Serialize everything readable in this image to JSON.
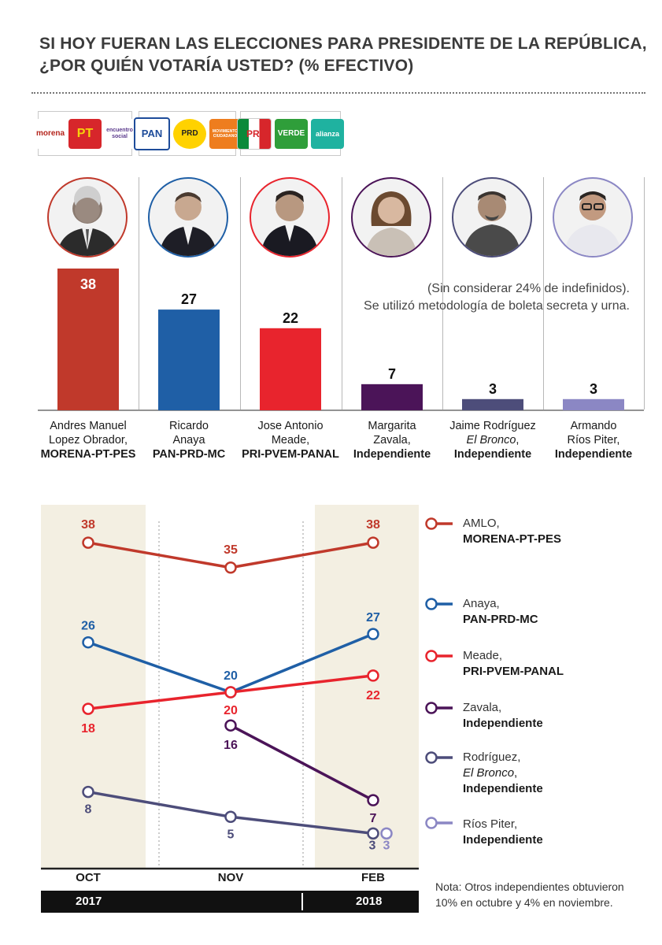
{
  "title": {
    "line1": "SI HOY FUERAN LAS ELECCIONES PARA PRESIDENTE DE LA REPÚBLICA,",
    "line2": "¿POR QUIÉN VOTARÍA USTED? (% EFECTIVO)"
  },
  "logos": {
    "g1": [
      "morena",
      "PT",
      "encuentro social"
    ],
    "g2": [
      "PAN",
      "PRD",
      "MOVIMIENTO CIUDADANO"
    ],
    "g3": [
      "PRI",
      "VERDE",
      "alianza"
    ]
  },
  "note_top": {
    "line1": "(Sin considerar 24% de indefinidos).",
    "line2": "Se utilizó metodología de boleta secreta y urna."
  },
  "colors": {
    "amlo": "#c0392b",
    "anaya": "#1f5fa6",
    "meade": "#e8242d",
    "zavala": "#4b1458",
    "bronco": "#4d4d7a",
    "rios": "#8b87c4",
    "shade": "#f3efe2"
  },
  "candidates": [
    {
      "l1": "Andres Manuel",
      "l2": "Lopez Obrador,",
      "party": "MORENA-PT-PES"
    },
    {
      "l1": "Ricardo",
      "l2": "Anaya",
      "party": "PAN-PRD-MC"
    },
    {
      "l1": "Jose Antonio",
      "l2": "Meade,",
      "party": "PRI-PVEM-PANAL"
    },
    {
      "l1": "Margarita",
      "l2": "Zavala,",
      "party": "Independiente"
    },
    {
      "l1": "Jaime Rodríguez",
      "l2": "El Bronco",
      "l2b": ",",
      "party": "Independiente"
    },
    {
      "l1": "Armando",
      "l2": "Ríos Piter,",
      "party": "Independiente"
    }
  ],
  "legend": [
    {
      "name": "AMLO,",
      "party": "MORENA-PT-PES"
    },
    {
      "name": "Anaya,",
      "party": "PAN-PRD-MC"
    },
    {
      "name": "Meade,",
      "party": "PRI-PVEM-PANAL"
    },
    {
      "name": "Zavala,",
      "party": "Independiente"
    },
    {
      "name": "Rodríguez,",
      "name2": "El Bronco",
      "name2b": ",",
      "party": "Independiente"
    },
    {
      "name": "Ríos Piter,",
      "party": "Independiente"
    }
  ],
  "axis": {
    "months": [
      "OCT",
      "NOV",
      "FEB"
    ],
    "year1": "2017",
    "year2": "2018"
  },
  "bottom_note": {
    "line1": "Nota: Otros independientes obtuvieron",
    "line2": "10% en octubre y 4% en noviembre."
  },
  "chart_data": [
    {
      "type": "bar",
      "title": "SI HOY FUERAN LAS ELECCIONES PARA PRESIDENTE DE LA REPÚBLICA, ¿POR QUIÉN VOTARÍA USTED? (% EFECTIVO)",
      "categories": [
        "Andres Manuel Lopez Obrador, MORENA-PT-PES",
        "Ricardo Anaya PAN-PRD-MC",
        "Jose Antonio Meade, PRI-PVEM-PANAL",
        "Margarita Zavala, Independiente",
        "Jaime Rodríguez El Bronco, Independiente",
        "Armando Ríos Piter, Independiente"
      ],
      "values": [
        38,
        27,
        22,
        7,
        3,
        3
      ],
      "value_labels": [
        "38",
        "27",
        "22",
        "7",
        "3",
        "3"
      ],
      "ylim": [
        0,
        40
      ]
    },
    {
      "type": "line",
      "x": [
        "OCT",
        "NOV",
        "FEB"
      ],
      "ylim": [
        0,
        40
      ],
      "series": [
        {
          "name": "AMLO",
          "values": [
            38,
            35,
            38
          ],
          "labels": [
            "38",
            "35",
            "38"
          ]
        },
        {
          "name": "Anaya",
          "values": [
            26,
            20,
            27
          ],
          "labels": [
            "26",
            "20",
            "27"
          ]
        },
        {
          "name": "Meade",
          "values": [
            18,
            20,
            22
          ],
          "labels": [
            "18",
            "20",
            "22"
          ]
        },
        {
          "name": "Zavala",
          "values": [
            null,
            16,
            7
          ],
          "labels": [
            "",
            "16",
            "7"
          ]
        },
        {
          "name": "Rodríguez",
          "values": [
            8,
            5,
            3
          ],
          "labels": [
            "8",
            "5",
            "3"
          ]
        },
        {
          "name": "Ríos Piter",
          "values": [
            null,
            null,
            3
          ],
          "labels": [
            "",
            "",
            "3"
          ]
        }
      ]
    }
  ]
}
